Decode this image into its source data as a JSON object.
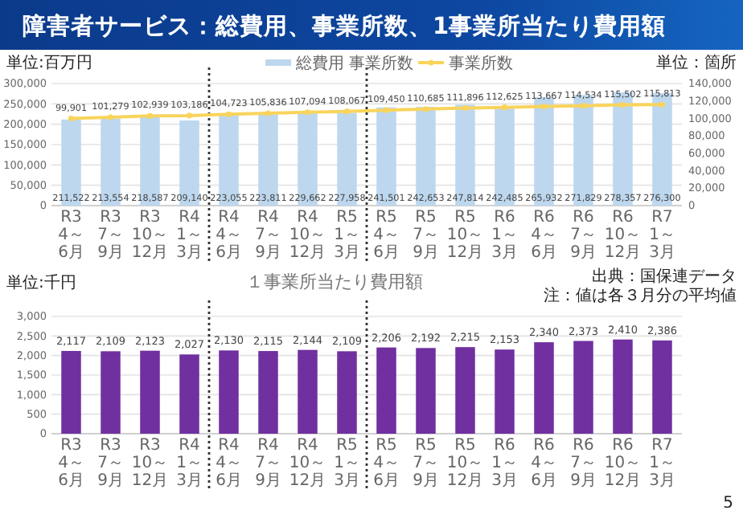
{
  "chart_data": [
    {
      "type": "bar",
      "title": "障害者サービス：総費用、事業所数、1事業所当たり費用額",
      "ylabel": "単位:百万円",
      "y2label": "単位：箇所",
      "categories": [
        "R3\n4～6月",
        "R3\n7～9月",
        "R3\n10～12月",
        "R4\n1～3月",
        "R4\n4～6月",
        "R4\n7～9月",
        "R4\n10～12月",
        "R5\n1～3月",
        "R5\n4～6月",
        "R5\n7～9月",
        "R5\n10～12月",
        "R6\n1～3月",
        "R6\n4～6月",
        "R6\n7～9月",
        "R6\n10～12月",
        "R7\n1～3月"
      ],
      "series": [
        {
          "name": "総費用 事業所数",
          "color": "#bdd7ee",
          "values": [
            211522,
            213554,
            218587,
            209140,
            223055,
            223811,
            229662,
            227958,
            241501,
            242653,
            247814,
            242485,
            265932,
            271829,
            278357,
            276300
          ],
          "value_labels": [
            "211,522",
            "213,554",
            "218,587",
            "209,140",
            "223,055",
            "223,811",
            "229,662",
            "227,958",
            "241,501",
            "242,653",
            "247,814",
            "242,485",
            "265,932",
            "271,829",
            "278,357",
            "276,300"
          ]
        },
        {
          "name": "事業所数",
          "type": "line",
          "axis": "y2",
          "color": "#f9d45c",
          "values": [
            99901,
            101279,
            102939,
            103186,
            104723,
            105836,
            107094,
            108067,
            109450,
            110685,
            111896,
            112625,
            113667,
            114534,
            115502,
            115813
          ],
          "value_labels": [
            "99,901",
            "101,279",
            "102,939",
            "103,186",
            "104,723",
            "105,836",
            "107,094",
            "108,067",
            "109,450",
            "110,685",
            "111,896",
            "112,625",
            "113,667",
            "114,534",
            "115,502",
            "115,813"
          ]
        }
      ],
      "ylim": [
        0,
        300000
      ],
      "yticks": [
        {
          "value": 0,
          "label": "0"
        },
        {
          "value": 50000,
          "label": "50,000"
        },
        {
          "value": 100000,
          "label": "100,000"
        },
        {
          "value": 150000,
          "label": "150,000"
        },
        {
          "value": 200000,
          "label": "200,000"
        },
        {
          "value": 250000,
          "label": "250,000"
        },
        {
          "value": 300000,
          "label": "300,000"
        }
      ],
      "y2lim": [
        0,
        140000
      ],
      "y2ticks": [
        {
          "value": 0,
          "label": "0"
        },
        {
          "value": 20000,
          "label": "20,000"
        },
        {
          "value": 40000,
          "label": "40,000"
        },
        {
          "value": 60000,
          "label": "60,000"
        },
        {
          "value": 80000,
          "label": "80,000"
        },
        {
          "value": 100000,
          "label": "100,000"
        },
        {
          "value": 120000,
          "label": "120,000"
        },
        {
          "value": 140000,
          "label": "140,000"
        }
      ],
      "grid": "y",
      "legend": "top",
      "marker": "circle"
    },
    {
      "type": "bar",
      "title": "１事業所当たり費用額",
      "ylabel": "単位:千円",
      "categories": [
        "R3\n4～6月",
        "R3\n7～9月",
        "R3\n10～12月",
        "R4\n1～3月",
        "R4\n4～6月",
        "R4\n7～9月",
        "R4\n10～12月",
        "R5\n1～3月",
        "R5\n4～6月",
        "R5\n7～9月",
        "R5\n10～12月",
        "R6\n1～3月",
        "R6\n4～6月",
        "R6\n7～9月",
        "R6\n10～12月",
        "R7\n1～3月"
      ],
      "series": [
        {
          "color": "#7030a0",
          "values": [
            2117,
            2109,
            2123,
            2027,
            2130,
            2115,
            2144,
            2109,
            2206,
            2192,
            2215,
            2153,
            2340,
            2373,
            2410,
            2386
          ],
          "value_labels": [
            "2,117",
            "2,109",
            "2,123",
            "2,027",
            "2,130",
            "2,115",
            "2,144",
            "2,109",
            "2,206",
            "2,192",
            "2,215",
            "2,153",
            "2,340",
            "2,373",
            "2,410",
            "2,386"
          ]
        }
      ],
      "ylim": [
        0,
        3000
      ],
      "yticks": [
        {
          "value": 0,
          "label": "0"
        },
        {
          "value": 500,
          "label": "500"
        },
        {
          "value": 1000,
          "label": "1,000"
        },
        {
          "value": 1500,
          "label": "1,500"
        },
        {
          "value": 2000,
          "label": "2,000"
        },
        {
          "value": 2500,
          "label": "2,500"
        },
        {
          "value": 3000,
          "label": "3,000"
        }
      ],
      "annotations": [
        "出典：国保連データ",
        "注：値は各３月分の平均値",
        "5"
      ],
      "grid": "y"
    }
  ]
}
